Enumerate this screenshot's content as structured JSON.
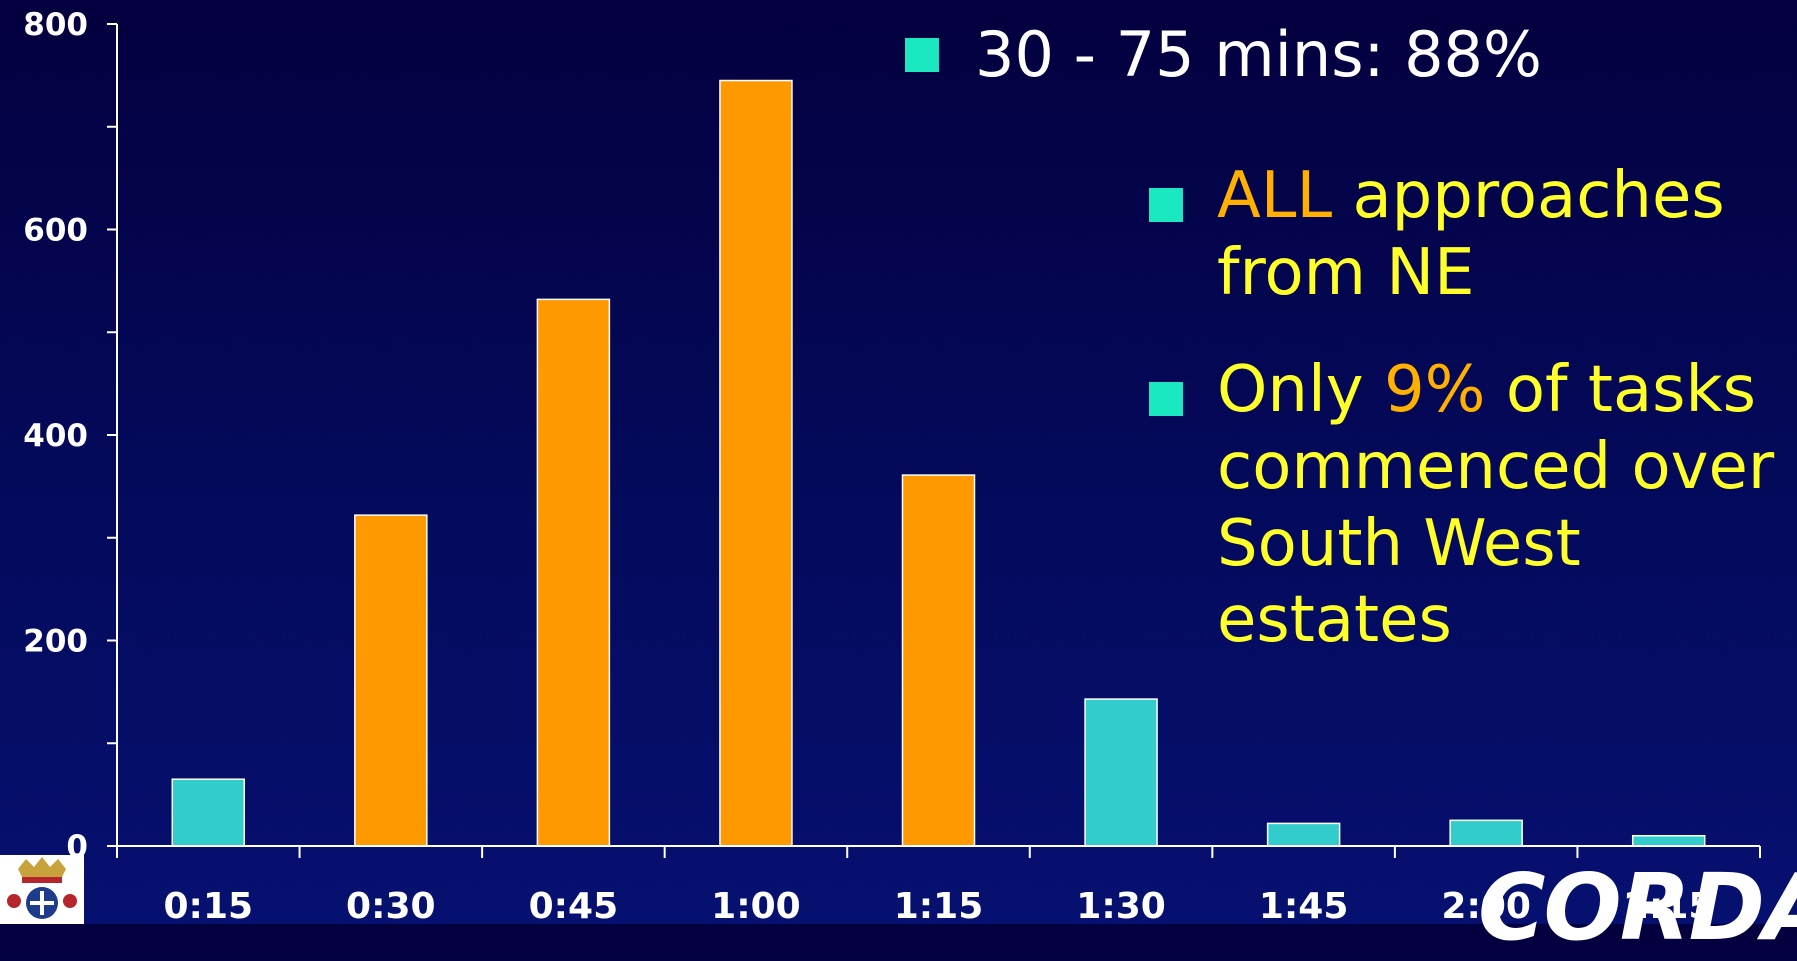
{
  "chart_data": {
    "type": "bar",
    "categories": [
      "0:15",
      "0:30",
      "0:45",
      "1:00",
      "1:15",
      "1:30",
      "1:45",
      "2:00",
      "2:15"
    ],
    "values": [
      65,
      322,
      532,
      745,
      361,
      143,
      22,
      25,
      10
    ],
    "highlight": [
      false,
      true,
      true,
      true,
      true,
      false,
      false,
      false,
      false
    ],
    "ylim": [
      0,
      800
    ],
    "yticks": [
      0,
      200,
      400,
      600,
      800
    ],
    "grid": false,
    "colors": {
      "normal": "#33cccc",
      "highlight": "#ff9900",
      "axis": "#ffffff"
    }
  },
  "notes": {
    "summary": {
      "text": "30 - 75 mins: 88%"
    },
    "b1": {
      "hl": "ALL",
      "rest": " approaches from NE"
    },
    "b2": {
      "pre": "Only ",
      "hl": "9%",
      "post": " of tasks commenced over South West estates"
    }
  },
  "logo": {
    "text": "CORDA",
    "crest_icon": "royal-crest-icon"
  },
  "colors": {
    "marker": "#19e8c0",
    "text_yellow": "#ffff2a",
    "text_orange": "#ffb000"
  }
}
